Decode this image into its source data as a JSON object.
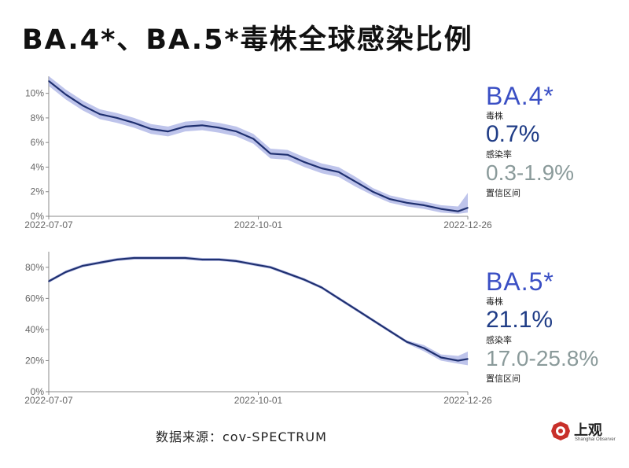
{
  "title": "BA.4*、BA.5*毒株全球感染比例",
  "source": "数据来源：cov-SPECTRUM",
  "logo": {
    "text": "上观",
    "sub": "Shanghai Observer",
    "color": "#c8302a"
  },
  "colors": {
    "line": "#1f3070",
    "band": "#a8b0e4",
    "axis": "#888888"
  },
  "panels": [
    {
      "variant": "BA.4*",
      "label_strain": "毒株",
      "value": "0.7%",
      "label_rate": "感染率",
      "ci": "0.3-1.9%",
      "label_ci": "置信区间"
    },
    {
      "variant": "BA.5*",
      "label_strain": "毒株",
      "value": "21.1%",
      "label_rate": "感染率",
      "ci": "17.0-25.8%",
      "label_ci": "置信区间"
    }
  ],
  "chart_data": [
    {
      "type": "line",
      "x_tick_labels": [
        "2022-07-07",
        "2022-10-01",
        "2022-12-26"
      ],
      "xlim": [
        "2022-07-07",
        "2022-12-26"
      ],
      "y_tick_labels": [
        "0%",
        "2%",
        "4%",
        "6%",
        "8%",
        "10%"
      ],
      "ylim": [
        0,
        11
      ],
      "series": [
        {
          "x": [
            "2022-07-07",
            "2022-07-14",
            "2022-07-21",
            "2022-07-28",
            "2022-08-04",
            "2022-08-11",
            "2022-08-18",
            "2022-08-25",
            "2022-09-01",
            "2022-09-08",
            "2022-09-15",
            "2022-09-22",
            "2022-09-29",
            "2022-10-06",
            "2022-10-13",
            "2022-10-20",
            "2022-10-27",
            "2022-11-03",
            "2022-11-10",
            "2022-11-17",
            "2022-11-24",
            "2022-12-01",
            "2022-12-08",
            "2022-12-15",
            "2022-12-22",
            "2022-12-26"
          ],
          "values": [
            11.0,
            9.9,
            9.0,
            8.3,
            8.0,
            7.6,
            7.1,
            6.9,
            7.3,
            7.4,
            7.2,
            6.9,
            6.3,
            5.1,
            5.0,
            4.4,
            3.9,
            3.6,
            2.8,
            2.0,
            1.4,
            1.1,
            0.9,
            0.6,
            0.4,
            0.7
          ],
          "ci_low": [
            10.6,
            9.5,
            8.6,
            7.9,
            7.6,
            7.2,
            6.7,
            6.5,
            6.9,
            7.0,
            6.8,
            6.5,
            5.9,
            4.7,
            4.6,
            4.0,
            3.5,
            3.2,
            2.4,
            1.7,
            1.1,
            0.8,
            0.6,
            0.3,
            0.2,
            0.3
          ],
          "ci_high": [
            11.4,
            10.3,
            9.4,
            8.7,
            8.4,
            8.0,
            7.5,
            7.3,
            7.7,
            7.8,
            7.6,
            7.3,
            6.7,
            5.5,
            5.4,
            4.8,
            4.3,
            4.0,
            3.2,
            2.3,
            1.7,
            1.4,
            1.2,
            0.9,
            0.8,
            1.9
          ]
        }
      ]
    },
    {
      "type": "line",
      "x_tick_labels": [
        "2022-07-07",
        "2022-10-01",
        "2022-12-26"
      ],
      "xlim": [
        "2022-07-07",
        "2022-12-26"
      ],
      "y_tick_labels": [
        "0%",
        "20%",
        "40%",
        "60%",
        "80%"
      ],
      "ylim": [
        0,
        87
      ],
      "series": [
        {
          "x": [
            "2022-07-07",
            "2022-07-14",
            "2022-07-21",
            "2022-07-28",
            "2022-08-04",
            "2022-08-11",
            "2022-08-18",
            "2022-08-25",
            "2022-09-01",
            "2022-09-08",
            "2022-09-15",
            "2022-09-22",
            "2022-09-29",
            "2022-10-06",
            "2022-10-13",
            "2022-10-20",
            "2022-10-27",
            "2022-11-03",
            "2022-11-10",
            "2022-11-17",
            "2022-11-24",
            "2022-12-01",
            "2022-12-08",
            "2022-12-15",
            "2022-12-22",
            "2022-12-26"
          ],
          "values": [
            71,
            77,
            81,
            83,
            85,
            86,
            86,
            86,
            86,
            85,
            85,
            84,
            82,
            80,
            76,
            72,
            67,
            60,
            53,
            46,
            39,
            32,
            28,
            22,
            20,
            21.1
          ],
          "ci_low": [
            70,
            76,
            80,
            82,
            84,
            85,
            85,
            85,
            85,
            84,
            84,
            83,
            81,
            79,
            75,
            71,
            66,
            59,
            52,
            45,
            38,
            31,
            26,
            20,
            18,
            17.0
          ],
          "ci_high": [
            72,
            78,
            82,
            84,
            86,
            87,
            87,
            87,
            87,
            86,
            86,
            85,
            83,
            81,
            77,
            73,
            68,
            61,
            54,
            47,
            40,
            33,
            30,
            24,
            23,
            25.8
          ]
        }
      ]
    }
  ]
}
